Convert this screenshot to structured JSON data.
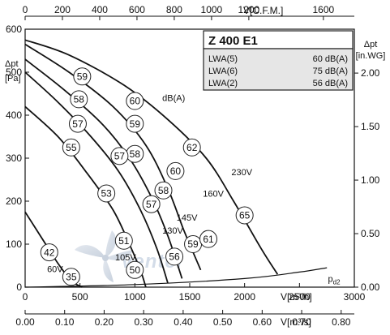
{
  "chart_data": {
    "type": "line",
    "title": "Z 400 E1",
    "info_box": {
      "title": "Z 400 E1",
      "rows": [
        {
          "label": "LWA(5)",
          "value": "60 dB(A)"
        },
        {
          "label": "LWA(6)",
          "value": "75 dB(A)"
        },
        {
          "label": "LWA(2)",
          "value": "56 dB(A)"
        }
      ]
    },
    "axes": {
      "x_bottom_primary": {
        "label": "V[m³/h]",
        "ticks": [
          "0",
          "500",
          "1000",
          "1500",
          "2000",
          "2500",
          "3000"
        ],
        "range": [
          0,
          3000
        ]
      },
      "x_bottom_secondary": {
        "label": "V[m³/s]",
        "ticks": [
          "0.00",
          "0.10",
          "0.20",
          "0.30",
          "0.40",
          "0.50",
          "0.60",
          "0.70",
          "0.80"
        ],
        "range": [
          0,
          0.8333
        ]
      },
      "x_top": {
        "label": "V[C.F.M.]",
        "ticks": [
          "0",
          "200",
          "400",
          "600",
          "800",
          "1000",
          "1200",
          "1600"
        ],
        "range": [
          0,
          1766
        ]
      },
      "y_left": {
        "label_main": "Δpt",
        "label_unit": "[Pa]",
        "ticks": [
          "0",
          "100",
          "200",
          "300",
          "400",
          "500",
          "600"
        ],
        "range": [
          0,
          600
        ]
      },
      "y_right": {
        "label_main": "Δpt",
        "label_unit": "[in.WG]",
        "ticks": [
          "0.00",
          "0.50",
          "1.00",
          "1.50",
          "2.00"
        ],
        "range": [
          0,
          2.41
        ]
      }
    },
    "series": [
      {
        "name": "230V",
        "x": [
          0,
          400,
          900,
          1300,
          1650,
          1900,
          2150,
          2300
        ],
        "y": [
          575,
          540,
          470,
          390,
          300,
          200,
          90,
          30
        ]
      },
      {
        "name": "160V",
        "x": [
          0,
          400,
          800,
          1100,
          1300,
          1450,
          1600
        ],
        "y": [
          565,
          500,
          420,
          330,
          230,
          130,
          40
        ]
      },
      {
        "name": "145V",
        "x": [
          0,
          350,
          700,
          950,
          1150,
          1300,
          1430
        ],
        "y": [
          530,
          460,
          380,
          300,
          210,
          120,
          20
        ]
      },
      {
        "name": "130V",
        "x": [
          0,
          300,
          600,
          850,
          1050,
          1200,
          1300
        ],
        "y": [
          500,
          430,
          350,
          270,
          180,
          90,
          10
        ]
      },
      {
        "name": "105V",
        "x": [
          0,
          300,
          550,
          800,
          950,
          1050,
          1100
        ],
        "y": [
          420,
          350,
          270,
          180,
          100,
          40,
          0
        ]
      },
      {
        "name": "60V",
        "x": [
          0,
          150,
          300,
          420,
          520
        ],
        "y": [
          175,
          115,
          55,
          15,
          0
        ]
      },
      {
        "name": "pd2",
        "x": [
          0,
          1000,
          2000,
          2500,
          2750
        ],
        "y": [
          0,
          6,
          20,
          35,
          45
        ]
      }
    ],
    "noise_labels": [
      {
        "text": "59",
        "x": 520,
        "y": 490
      },
      {
        "text": "58",
        "x": 490,
        "y": 437
      },
      {
        "text": "57",
        "x": 480,
        "y": 380
      },
      {
        "text": "55",
        "x": 420,
        "y": 325
      },
      {
        "text": "60",
        "x": 1000,
        "y": 433
      },
      {
        "text": "59",
        "x": 1000,
        "y": 380
      },
      {
        "text": "58",
        "x": 1000,
        "y": 310
      },
      {
        "text": "57",
        "x": 860,
        "y": 305
      },
      {
        "text": "62",
        "x": 1520,
        "y": 325
      },
      {
        "text": "60",
        "x": 1370,
        "y": 270
      },
      {
        "text": "58",
        "x": 1260,
        "y": 225
      },
      {
        "text": "53",
        "x": 740,
        "y": 218
      },
      {
        "text": "57",
        "x": 1150,
        "y": 193
      },
      {
        "text": "65",
        "x": 2000,
        "y": 167
      },
      {
        "text": "51",
        "x": 900,
        "y": 108
      },
      {
        "text": "59",
        "x": 1530,
        "y": 100
      },
      {
        "text": "61",
        "x": 1670,
        "y": 112
      },
      {
        "text": "56",
        "x": 1360,
        "y": 71
      },
      {
        "text": "50",
        "x": 1000,
        "y": 40
      },
      {
        "text": "42",
        "x": 220,
        "y": 81
      },
      {
        "text": "35",
        "x": 420,
        "y": 24
      }
    ],
    "annotations": [
      {
        "text": "dB(A)",
        "x": 1250,
        "y": 433
      },
      {
        "text": "230V",
        "x": 1880,
        "y": 260
      },
      {
        "text": "160V",
        "x": 1620,
        "y": 210
      },
      {
        "text": "145V",
        "x": 1380,
        "y": 155
      },
      {
        "text": "130V",
        "x": 1250,
        "y": 125
      },
      {
        "text": "105V",
        "x": 820,
        "y": 62
      },
      {
        "text": "60V",
        "x": 200,
        "y": 35
      },
      {
        "text": "pd2",
        "x": 2760,
        "y": 12
      }
    ],
    "watermark": "ventel",
    "grid": false
  }
}
